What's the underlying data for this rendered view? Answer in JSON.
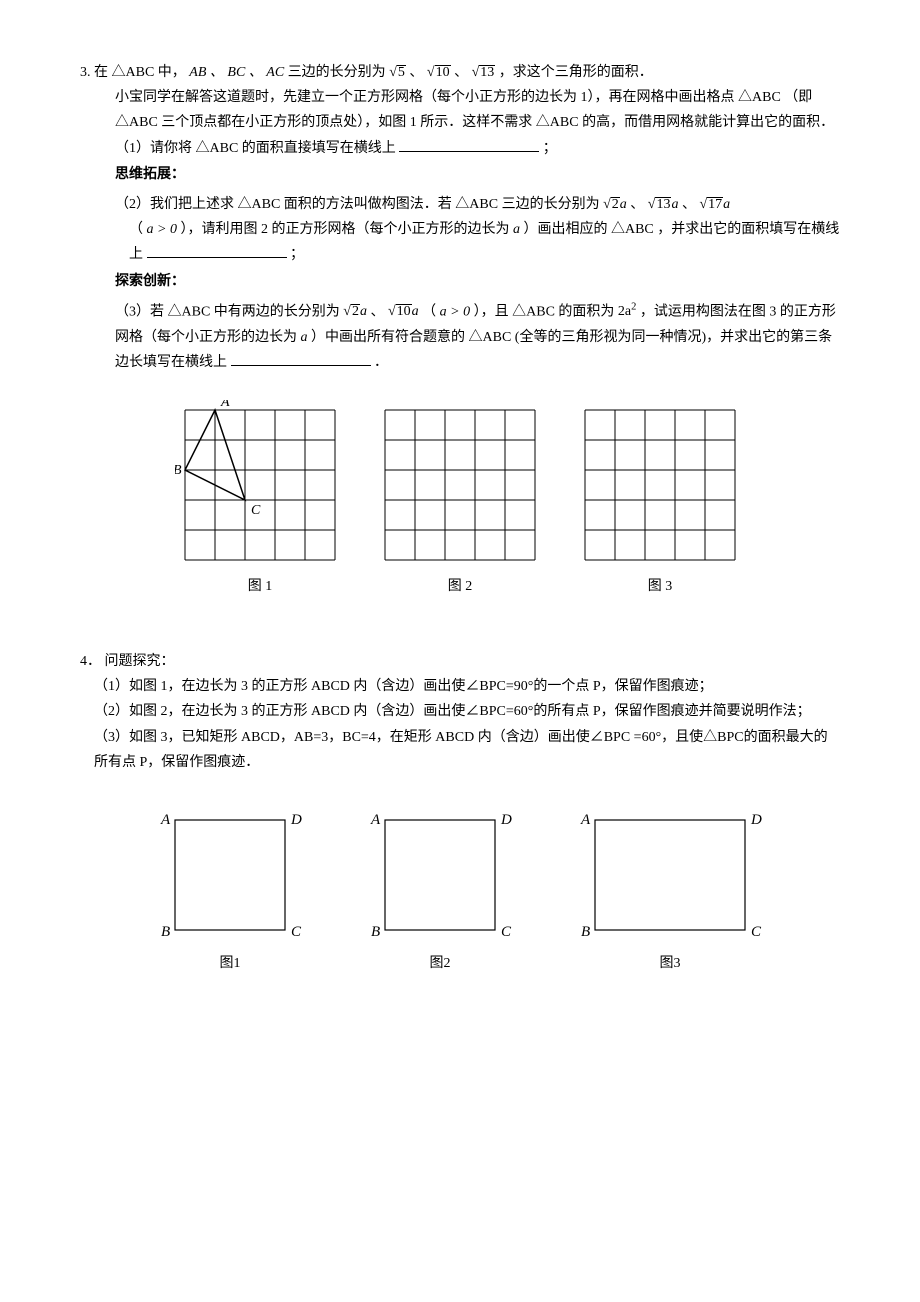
{
  "p3": {
    "number": "3.",
    "stem_a": "在",
    "tri": "△ABC",
    "stem_b": "中，",
    "sides": "AB 、 BC 、 AC",
    "stem_c": "三边的长分别为",
    "s1_arg": "5",
    "sep": "、",
    "s2_arg": "10",
    "s3_arg": "13",
    "stem_d": "，求这个三角形的面积．",
    "para1_a": "小宝同学在解答这道题时，先建立一个正方形网格（每个小正方形的边长为 1），再在网格中画出格点",
    "para1_b": "（即",
    "para1_c": "三个顶点都在小正方形的顶点处），如图 1 所示．这样不需求",
    "para1_d": "的高，而借用网格就能计算出它的面积．",
    "q1_a": "（1）请你将",
    "q1_b": "的面积直接填写在横线上",
    "semicolon": "；",
    "ext_title": "思维拓展：",
    "q2_a": "（2）我们把上述求",
    "q2_b": "面积的方法叫做构图法．若",
    "q2_c": "三边的长分别为",
    "q2_s1": "2",
    "q2_var": "a",
    "q2_s2": "13",
    "q2_s3": "17",
    "q2_d": "（",
    "q2_cond": "a > 0",
    "q2_e": "），请利用图 2 的正方形网格（每个小正方形的边长为",
    "q2_f": "）画出相应的",
    "q2_g": "，并求出它的面积填写在横线上",
    "inv_title": "探索创新：",
    "q3_a": "（3）若",
    "q3_b": "中有两边的长分别为",
    "q3_s1": "2",
    "q3_s2": "10",
    "q3_c": "（",
    "q3_d": "），且",
    "q3_e": "的面积为",
    "q3_area": "2a",
    "q3_exp": "2",
    "q3_f": "，试运用构图法在图 3 的正方形网格（每个小正方形的边长为",
    "q3_g": "）中画出所有符合题意的",
    "q3_h": "(全等的三角形视为同一种情况)，并求出它的第三条边长填写在横线上",
    "period": "．",
    "grid": {
      "cols": 5,
      "rows": 5,
      "cell": 30,
      "stroke": "#000000",
      "bg": "#ffffff",
      "labels": {
        "A": "A",
        "B": "B",
        "C": "C"
      },
      "A": [
        1,
        0
      ],
      "Bpt": [
        0,
        2
      ],
      "Cpt": [
        2,
        3
      ],
      "captions": [
        "图 1",
        "图 2",
        "图 3"
      ]
    }
  },
  "p4": {
    "number": "4．",
    "title": "问题探究：",
    "q1": "（1）如图 1，在边长为 3 的正方形 ABCD 内（含边）画出使∠BPC=90°的一个点 P，保留作图痕迹；",
    "q2": "（2）如图 2，在边长为 3 的正方形 ABCD 内（含边）画出使∠BPC=60°的所有点 P，保留作图痕迹并简要说明作法；",
    "q3_a": "（3）如图 3，已知矩形 ABCD，AB=3，BC=4，在矩形 ABCD 内（含边）画出使∠BPC =60°，且使△BPC的面积最大的所有点 P，保留作图痕迹．",
    "squares": {
      "square_size": 110,
      "rect_w": 150,
      "rect_h": 110,
      "stroke": "#000000",
      "labels": {
        "A": "A",
        "B": "B",
        "C": "C",
        "D": "D"
      },
      "captions": [
        "图1",
        "图2",
        "图3"
      ]
    }
  }
}
